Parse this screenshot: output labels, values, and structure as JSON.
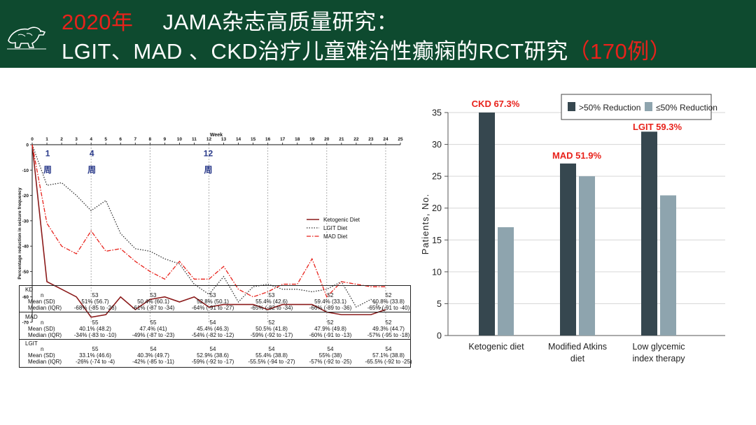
{
  "header": {
    "year": "2020年",
    "line1": "JAMA杂志高质量研究：",
    "line2": "LGIT、MAD 、CKD治疗儿童难治性癫痫的RCT研究",
    "count": "（170例）",
    "colors": {
      "bg": "#0e4a2f",
      "accent": "#e8221b"
    },
    "logo_icon": "polar-bear-logo"
  },
  "chart_data": [
    {
      "type": "line",
      "xlabel": "Week",
      "ylabel": "Percentage reduction in seizure frequency",
      "xlim": [
        0,
        25
      ],
      "ylim": [
        -70,
        0
      ],
      "xticks": [
        0,
        1,
        2,
        3,
        4,
        5,
        6,
        7,
        8,
        9,
        10,
        11,
        12,
        13,
        14,
        15,
        16,
        17,
        18,
        19,
        20,
        21,
        22,
        23,
        24,
        25
      ],
      "yticks": [
        0,
        -10,
        -20,
        -30,
        -40,
        -50,
        -60,
        -70
      ],
      "annotations": [
        {
          "x": 1,
          "label": "1\n周"
        },
        {
          "x": 4,
          "label": "4\n周"
        },
        {
          "x": 12,
          "label": "12\n周"
        }
      ],
      "legend_position": "right",
      "series": [
        {
          "name": "Ketogenic Diet",
          "color": "#8b1a1a",
          "style": "solid",
          "x": [
            0,
            1,
            2,
            3,
            4,
            5,
            6,
            7,
            8,
            9,
            10,
            11,
            12,
            13,
            14,
            15,
            16,
            17,
            18,
            19,
            20,
            21,
            22,
            23,
            24
          ],
          "values": [
            0,
            -54,
            -57,
            -60,
            -68,
            -67,
            -60,
            -65,
            -61,
            -60,
            -62,
            -60,
            -64,
            -63,
            -63,
            -63,
            -65,
            -63,
            -63,
            -63,
            -66,
            -67,
            -67,
            -67,
            -65
          ]
        },
        {
          "name": "LGIT Diet",
          "color": "#333333",
          "style": "dotted",
          "x": [
            0,
            1,
            2,
            3,
            4,
            5,
            6,
            7,
            8,
            9,
            10,
            11,
            12,
            13,
            14,
            15,
            16,
            17,
            18,
            19,
            20,
            21,
            22,
            23,
            24
          ],
          "values": [
            0,
            -16,
            -15,
            -20,
            -26,
            -22,
            -35,
            -41,
            -42,
            -45,
            -47,
            -55,
            -59,
            -52,
            -62,
            -56,
            -55,
            -57,
            -57,
            -58,
            -57,
            -54,
            -64,
            -61,
            -66
          ]
        },
        {
          "name": "MAD Diet",
          "color": "#e8221b",
          "style": "dashdot",
          "x": [
            0,
            1,
            2,
            3,
            4,
            5,
            6,
            7,
            8,
            9,
            10,
            11,
            12,
            13,
            14,
            15,
            16,
            17,
            18,
            19,
            20,
            21,
            22,
            23,
            24
          ],
          "values": [
            0,
            -31,
            -40,
            -43,
            -34,
            -42,
            -41,
            -46,
            -50,
            -53,
            -46,
            -53,
            -53,
            -48,
            -57,
            -60,
            -58,
            -55,
            -55,
            -45,
            -60,
            -54,
            -55,
            -56,
            -56
          ]
        }
      ]
    },
    {
      "type": "bar",
      "ylabel": "Patients, No.",
      "ylim": [
        0,
        35
      ],
      "yticks": [
        0,
        5,
        10,
        15,
        20,
        25,
        30,
        35
      ],
      "categories": [
        "Ketogenic diet",
        "Modified Atkins diet",
        "Low glycemic index therapy"
      ],
      "category_lines": [
        [
          "Ketogenic diet"
        ],
        [
          "Modified Atkins",
          "diet"
        ],
        [
          "Low glycemic",
          "index therapy"
        ]
      ],
      "legend_position": "top-right",
      "series": [
        {
          "name": ">50% Reduction",
          "color": "#36474f",
          "values": [
            35,
            27,
            32
          ]
        },
        {
          "name": "≤50% Reduction",
          "color": "#8ea4ae",
          "values": [
            17,
            25,
            22
          ]
        }
      ],
      "annotations": [
        "CKD  67.3%",
        "MAD  51.9%",
        "LGIT  59.3%"
      ]
    }
  ],
  "table": {
    "row_labels": [
      "n",
      "Mean (SD)",
      "Median (IQR)"
    ],
    "groups": [
      {
        "label": "KD",
        "cols": [
          {
            "n": "53",
            "mean": "51% (56.7)",
            "median": "-68% (-85 to -26)"
          },
          {
            "n": "53",
            "mean": "50.4% (60.1)",
            "median": "-61% (-87 to -34)"
          },
          {
            "n": "53",
            "mean": "52.8% (50.1)",
            "median": "-64% (-91 to -27)"
          },
          {
            "n": "53",
            "mean": "55.4% (42.6)",
            "median": "-65% (-82 to -34)"
          },
          {
            "n": "52",
            "mean": "59.4% (33.1)",
            "median": "-66% (-89 to -36)"
          },
          {
            "n": "52",
            "mean": "60.8% (33.8)",
            "median": "-65% (-91 to -40)"
          }
        ]
      },
      {
        "label": "MAD",
        "cols": [
          {
            "n": "55",
            "mean": "40.1% (48.2)",
            "median": "-34% (-83 to -10)"
          },
          {
            "n": "55",
            "mean": "47.4% (41)",
            "median": "-49% (-87 to -23)"
          },
          {
            "n": "54",
            "mean": "45.4% (46.3)",
            "median": "-54% (-82 to -12)"
          },
          {
            "n": "52",
            "mean": "50.5% (41.8)",
            "median": "-59% (-92 to -17)"
          },
          {
            "n": "52",
            "mean": "47.9% (49.8)",
            "median": "-60% (-91 to -13)"
          },
          {
            "n": "52",
            "mean": "49.3% (44.7)",
            "median": "-57% (-95 to -18)"
          }
        ]
      },
      {
        "label": "LGIT",
        "cols": [
          {
            "n": "55",
            "mean": "33.1% (46.6)",
            "median": "-26% (-74 to -4)"
          },
          {
            "n": "54",
            "mean": "40.3% (49.7)",
            "median": "-42% (-85 to -11)"
          },
          {
            "n": "54",
            "mean": "52.9% (38.6)",
            "median": "-59% (-92 to -17)"
          },
          {
            "n": "54",
            "mean": "55.4% (38.8)",
            "median": "-55.5% (-94 to -27)"
          },
          {
            "n": "54",
            "mean": "55% (38)",
            "median": "-57% (-92 to -25)"
          },
          {
            "n": "54",
            "mean": "57.1% (38.8)",
            "median": "-65.5% (-92 to -25)"
          }
        ]
      }
    ]
  }
}
